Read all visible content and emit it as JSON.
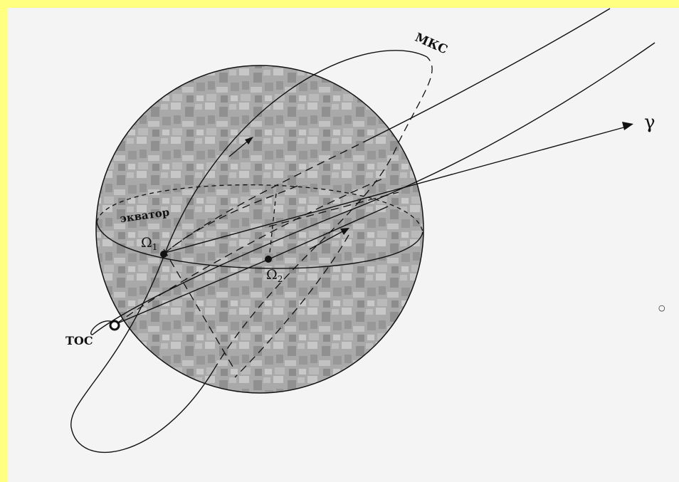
{
  "labels": {
    "iss": "МКС",
    "equator": "экватор",
    "node1": "Ω",
    "node1_sub": "1",
    "node2": "Ω",
    "node2_sub": "2",
    "toc": "ТОС",
    "gamma": "γ",
    "small_circle": "○"
  }
}
